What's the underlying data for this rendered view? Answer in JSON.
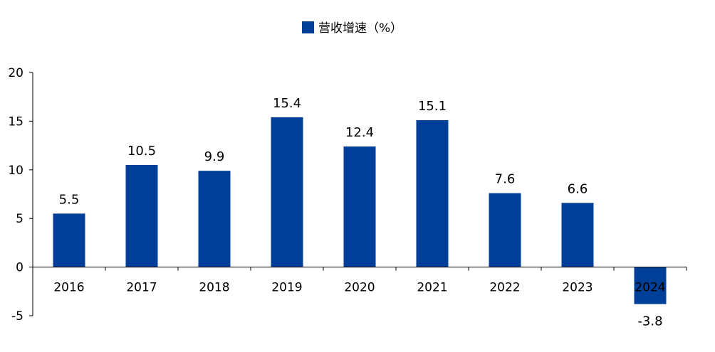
{
  "chart_data": {
    "type": "bar",
    "legend": {
      "label": "营收增速（%）",
      "position": "top-center"
    },
    "categories": [
      "2016",
      "2017",
      "2018",
      "2019",
      "2020",
      "2021",
      "2022",
      "2023",
      "2024"
    ],
    "series": [
      {
        "name": "营收增速（%）",
        "values": [
          5.5,
          10.5,
          9.9,
          15.4,
          12.4,
          15.1,
          7.6,
          6.6,
          -3.8
        ]
      }
    ],
    "data_labels": [
      "5.5",
      "10.5",
      "9.9",
      "15.4",
      "12.4",
      "15.1",
      "7.6",
      "6.6",
      "-3.8"
    ],
    "ylim": [
      -5,
      20
    ],
    "yticks": [
      -5,
      0,
      5,
      10,
      15,
      20
    ],
    "ytick_labels": [
      "-5",
      "0",
      "5",
      "10",
      "15",
      "20"
    ],
    "grid": false,
    "colors": {
      "bar": "#003F98",
      "axis": "#000000"
    }
  }
}
